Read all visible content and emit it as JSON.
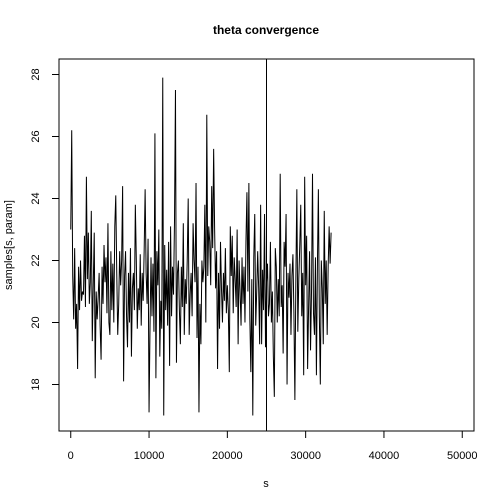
{
  "chart_data": {
    "type": "line",
    "title": "theta convergence",
    "xlabel": "s",
    "ylabel": "samples[s, param]",
    "xlim": [
      -1500,
      51500
    ],
    "ylim": [
      16.5,
      28.5
    ],
    "x_ticks": [
      0,
      10000,
      20000,
      30000,
      40000,
      50000
    ],
    "y_ticks": [
      18,
      20,
      22,
      24,
      26,
      28
    ],
    "vline_x": 25000,
    "x_step": 125,
    "y": [
      23.0,
      26.2,
      21.5,
      20.1,
      22.4,
      19.8,
      20.6,
      18.5,
      21.8,
      20.4,
      22.0,
      20.7,
      21.0,
      20.9,
      22.8,
      20.5,
      24.7,
      21.4,
      22.9,
      20.6,
      21.3,
      23.6,
      19.4,
      21.2,
      22.9,
      18.2,
      21.0,
      20.1,
      20.8,
      21.6,
      19.9,
      18.8,
      21.8,
      20.6,
      22.5,
      21.3,
      22.1,
      20.3,
      23.2,
      20.0,
      19.6,
      22.3,
      20.4,
      21.9,
      20.0,
      23.1,
      24.1,
      21.6,
      19.6,
      20.6,
      22.3,
      21.2,
      22.0,
      24.4,
      18.1,
      21.5,
      22.3,
      20.2,
      19.2,
      21.6,
      20.0,
      22.4,
      18.9,
      21.1,
      21.6,
      20.4,
      23.8,
      22.0,
      19.8,
      21.1,
      20.4,
      22.2,
      19.9,
      21.6,
      20.7,
      22.3,
      24.3,
      21.6,
      20.6,
      22.7,
      17.1,
      19.9,
      22.1,
      20.2,
      21.9,
      19.7,
      26.1,
      18.2,
      22.3,
      21.2,
      23.0,
      18.9,
      20.7,
      19.8,
      27.9,
      17.0,
      22.5,
      20.4,
      21.7,
      19.9,
      22.6,
      18.6,
      23.1,
      20.2,
      21.8,
      20.9,
      23.3,
      27.5,
      18.7,
      21.6,
      22.0,
      20.4,
      19.3,
      21.8,
      20.5,
      23.2,
      19.6,
      21.4,
      20.6,
      22.0,
      24.0,
      19.6,
      20.9,
      21.6,
      20.2,
      23.2,
      22.0,
      21.3,
      24.5,
      19.5,
      21.8,
      17.1,
      20.6,
      19.3,
      22.0,
      21.3,
      21.8,
      23.8,
      20.0,
      26.7,
      21.5,
      23.1,
      22.6,
      21.2,
      24.4,
      22.4,
      25.6,
      23.0,
      21.1,
      22.3,
      18.5,
      21.6,
      19.8,
      22.6,
      21.1,
      20.0,
      21.6,
      20.7,
      22.4,
      20.3,
      21.2,
      20.4,
      18.4,
      23.1,
      21.5,
      22.8,
      20.3,
      22.1,
      21.4,
      20.5,
      23.0,
      19.3,
      22.0,
      21.0,
      19.9,
      22.1,
      20.6,
      21.8,
      20.0,
      22.6,
      24.2,
      21.0,
      24.5,
      20.1,
      18.4,
      21.4,
      17.0,
      22.1,
      23.5,
      19.9,
      21.0,
      22.3,
      21.1,
      19.3,
      23.8,
      19.3,
      21.7,
      20.4,
      23.5,
      19.2,
      21.3,
      21.9,
      20.2,
      20.6,
      22.6,
      20.0,
      21.0,
      18.9,
      17.6,
      22.4,
      21.8,
      20.0,
      21.4,
      20.2,
      24.8,
      20.5,
      21.2,
      19.0,
      22.6,
      21.8,
      23.5,
      18.0,
      21.6,
      20.8,
      21.9,
      19.6,
      21.5,
      22.2,
      20.3,
      17.5,
      21.4,
      24.3,
      19.7,
      21.4,
      22.5,
      23.8,
      20.2,
      21.6,
      18.3,
      24.7,
      21.2,
      22.8,
      18.5,
      20.5,
      22.3,
      19.1,
      21.0,
      24.8,
      20.3,
      19.6,
      22.1,
      18.3,
      21.8,
      24.3,
      20.2,
      18.0,
      22.0,
      21.1,
      19.3,
      23.6,
      20.6,
      22.0,
      19.6,
      21.8,
      23.1,
      21.9,
      22.9
    ]
  }
}
